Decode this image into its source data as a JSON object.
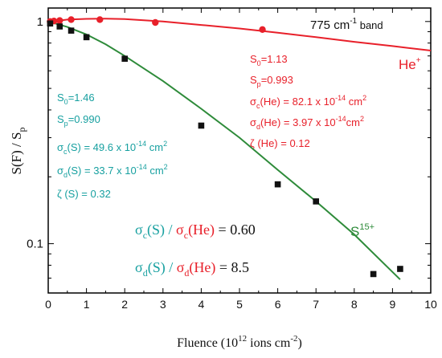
{
  "chart_data": {
    "type": "scatter",
    "xlabel": {
      "main": "Fluence  (10",
      "exp": "12",
      "mid": " ions  cm",
      "exp2": "-2",
      "end": ")"
    },
    "ylabel": {
      "main": "S(F) / S",
      "sub": "p"
    },
    "xlim": [
      0,
      10
    ],
    "ylim": [
      0.06,
      1.15
    ],
    "yscale": "log",
    "x_ticks": [
      "0",
      "1",
      "2",
      "3",
      "4",
      "5",
      "6",
      "7",
      "8",
      "9",
      "10"
    ],
    "y_ticks": [
      "1",
      "0.1"
    ],
    "band_label": {
      "main": "775 cm",
      "exp": "-1",
      "end": " band"
    },
    "colors": {
      "he": "#e8202a",
      "s": "#2e8b3a",
      "teal": "#17a0a0",
      "black": "#111111"
    },
    "series": [
      {
        "name": "He+",
        "color": "#e8202a",
        "marker": "circle",
        "points": [
          {
            "x": 0.05,
            "y": 1.0
          },
          {
            "x": 0.15,
            "y": 1.005
          },
          {
            "x": 0.3,
            "y": 1.01
          },
          {
            "x": 0.6,
            "y": 1.02
          },
          {
            "x": 1.35,
            "y": 1.02
          },
          {
            "x": 2.8,
            "y": 0.99
          },
          {
            "x": 5.6,
            "y": 0.92
          }
        ],
        "fit": [
          {
            "x": 0,
            "y": 0.995
          },
          {
            "x": 0.5,
            "y": 1.02
          },
          {
            "x": 1,
            "y": 1.028
          },
          {
            "x": 1.5,
            "y": 1.03
          },
          {
            "x": 2,
            "y": 1.025
          },
          {
            "x": 3,
            "y": 1.0
          },
          {
            "x": 4,
            "y": 0.965
          },
          {
            "x": 5,
            "y": 0.93
          },
          {
            "x": 6,
            "y": 0.89
          },
          {
            "x": 7,
            "y": 0.85
          },
          {
            "x": 8,
            "y": 0.81
          },
          {
            "x": 9,
            "y": 0.775
          },
          {
            "x": 10,
            "y": 0.74
          }
        ]
      },
      {
        "name": "S15+",
        "color": "#2e8b3a",
        "marker": "square",
        "points": [
          {
            "x": 0.05,
            "y": 0.98
          },
          {
            "x": 0.3,
            "y": 0.95
          },
          {
            "x": 0.6,
            "y": 0.91
          },
          {
            "x": 1.0,
            "y": 0.85
          },
          {
            "x": 2.0,
            "y": 0.68
          },
          {
            "x": 4.0,
            "y": 0.34
          },
          {
            "x": 6.0,
            "y": 0.185
          },
          {
            "x": 7.0,
            "y": 0.155
          },
          {
            "x": 8.5,
            "y": 0.073
          },
          {
            "x": 9.2,
            "y": 0.077
          }
        ],
        "fit": [
          {
            "x": 0,
            "y": 1.0
          },
          {
            "x": 0.5,
            "y": 0.945
          },
          {
            "x": 1,
            "y": 0.875
          },
          {
            "x": 1.5,
            "y": 0.79
          },
          {
            "x": 2,
            "y": 0.7
          },
          {
            "x": 3,
            "y": 0.54
          },
          {
            "x": 4,
            "y": 0.405
          },
          {
            "x": 5,
            "y": 0.3
          },
          {
            "x": 6,
            "y": 0.215
          },
          {
            "x": 7,
            "y": 0.155
          },
          {
            "x": 8,
            "y": 0.11
          },
          {
            "x": 9.2,
            "y": 0.069
          }
        ]
      }
    ]
  },
  "annotations": {
    "he_label": {
      "main": "He",
      "exp": "+"
    },
    "s_label": {
      "main": "S",
      "exp": "15+"
    },
    "he_params": [
      {
        "a": "S",
        "sub": "0",
        "b": "=1.13"
      },
      {
        "a": "S",
        "sub": "p",
        "b": "=0.993"
      },
      {
        "a": "σ",
        "sub": "c",
        "b": "(He) = 82.1 x 10",
        "exp": "-14",
        "c": " cm",
        "exp2": "2"
      },
      {
        "a": "σ",
        "sub": "d",
        "b": "(He) = 3.97 x 10",
        "exp": "-14",
        "c": "cm",
        "exp2": "2"
      },
      {
        "a": "ζ",
        "sub": "",
        "b": " (He) = 0.12"
      }
    ],
    "s_params": [
      {
        "a": "S",
        "sub": "0",
        "b": "=1.46"
      },
      {
        "a": "S",
        "sub": "p",
        "b": "=0.990"
      },
      {
        "a": "σ",
        "sub": "c",
        "b": "(S) = 49.6 x 10",
        "exp": "-14",
        "c": " cm",
        "exp2": "2"
      },
      {
        "a": "σ",
        "sub": "d",
        "b": "(S) = 33.7 x 10",
        "exp": "-14",
        "c": " cm",
        "exp2": "2"
      },
      {
        "a": "ζ",
        "sub": "",
        "b": " (S) = 0.32"
      }
    ],
    "ratio_c": {
      "left": "σ",
      "left_sub": "c",
      "left_mid": "(S) / ",
      "right": "σ",
      "right_sub": "c",
      "right_mid": "(He)",
      "value": " = 0.60"
    },
    "ratio_d": {
      "left": "σ",
      "left_sub": "d",
      "left_mid": "(S) / ",
      "right": "σ",
      "right_sub": "d",
      "right_mid": "(He)",
      "value": " = 8.5"
    }
  }
}
